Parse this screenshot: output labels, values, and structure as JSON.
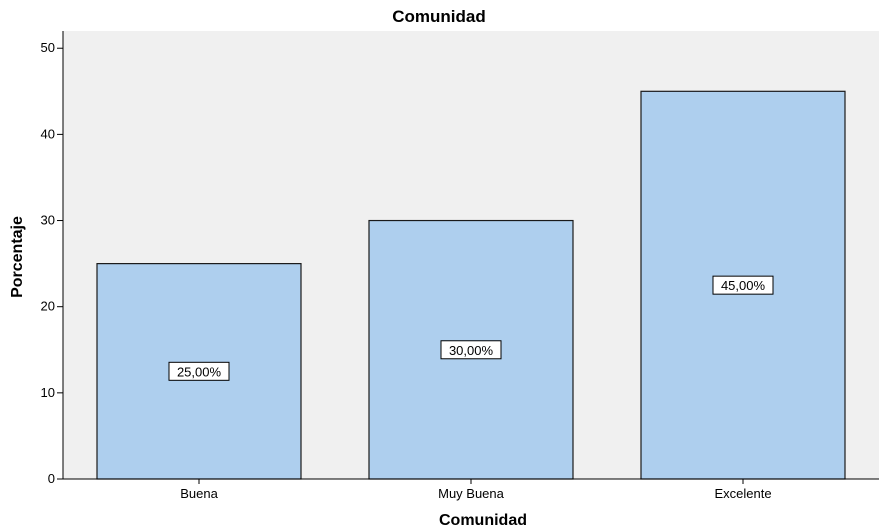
{
  "chart_data": {
    "type": "bar",
    "title": "Comunidad",
    "xlabel": "Comunidad",
    "ylabel": "Porcentaje",
    "categories": [
      "Buena",
      "Muy Buena",
      "Excelente"
    ],
    "values": [
      25,
      30,
      45
    ],
    "data_labels": [
      "25,00%",
      "30,00%",
      "45,00%"
    ],
    "ylim": [
      0,
      52
    ],
    "yticks": [
      0,
      10,
      20,
      30,
      40,
      50
    ],
    "grid": false,
    "colors": {
      "bar_fill": "#aecfee",
      "bar_stroke": "#1a1a1a",
      "plot_background": "#f0f0f0"
    }
  }
}
